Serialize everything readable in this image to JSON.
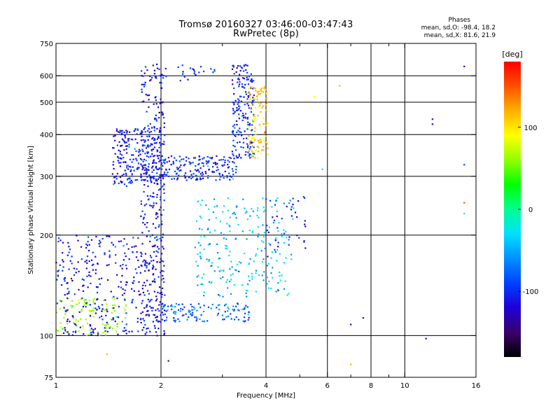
{
  "header": {
    "title_line1": "Tromsø 20160327 03:46:00-03:47:43",
    "title_line2": "RwPretec (8p)"
  },
  "phases": {
    "heading": "Phases",
    "line_o": "mean, sd,O: -98.4, 18.2",
    "line_x": "mean, sd,X:  81.6, 21.9"
  },
  "colorbar": {
    "unit_label": "[deg]",
    "tick_labels": [
      "100",
      "0",
      "-100"
    ],
    "tick_values": [
      100,
      0,
      -100
    ],
    "range": [
      -180,
      180
    ],
    "colormap": [
      "#000000",
      "#3a006b",
      "#1f00d8",
      "#0040ff",
      "#0090ff",
      "#00e0ff",
      "#00ff90",
      "#00ff00",
      "#90ff00",
      "#ffff00",
      "#ffb000",
      "#ff5000",
      "#ff0000"
    ]
  },
  "chart_data": {
    "type": "scatter",
    "title": "Tromsø 20160327 03:46:00-03:47:43",
    "subtitle": "RwPretec (8p)",
    "xlabel": "Frequency [MHz]",
    "ylabel": "Stationary phase Virtual Height [km]",
    "xscale": "log",
    "yscale": "log",
    "xlim": [
      1,
      16
    ],
    "ylim": [
      75,
      750
    ],
    "x_ticks": [
      1,
      2,
      4,
      6,
      8,
      10,
      16
    ],
    "x_tick_labels": [
      "1",
      "2",
      "4",
      "6",
      "8",
      "10",
      "16"
    ],
    "x_minor_ticks": [
      3,
      5,
      7,
      9
    ],
    "x_gridlines": [
      2,
      4,
      6,
      8,
      10
    ],
    "y_ticks": [
      75,
      100,
      200,
      300,
      400,
      500,
      600,
      750
    ],
    "y_tick_labels": [
      "75",
      "100",
      "200",
      "300",
      "400",
      "500",
      "600",
      "750"
    ],
    "y_gridlines": [
      100,
      200,
      300,
      400,
      500,
      600
    ],
    "grid": true,
    "color_encoding": "phase [deg]",
    "point_clusters": [
      {
        "x_range": [
          1.0,
          1.6
        ],
        "y_range": [
          100,
          130
        ],
        "phase": 60,
        "count": 110
      },
      {
        "x_range": [
          1.0,
          2.0
        ],
        "y_range": [
          100,
          200
        ],
        "phase": -110,
        "count": 320
      },
      {
        "x_range": [
          1.75,
          2.05
        ],
        "y_range": [
          100,
          650
        ],
        "phase": -115,
        "count": 300
      },
      {
        "x_range": [
          1.45,
          2.0
        ],
        "y_range": [
          280,
          420
        ],
        "phase": -105,
        "count": 260
      },
      {
        "x_range": [
          2.0,
          3.3
        ],
        "y_range": [
          292,
          345
        ],
        "phase": -95,
        "count": 180
      },
      {
        "x_range": [
          3.2,
          3.7
        ],
        "y_range": [
          340,
          650
        ],
        "phase": -100,
        "count": 180
      },
      {
        "x_range": [
          3.55,
          4.05
        ],
        "y_range": [
          340,
          560
        ],
        "phase": 110,
        "count": 110
      },
      {
        "x_range": [
          2.0,
          3.6
        ],
        "y_range": [
          110,
          125
        ],
        "phase": -80,
        "count": 120
      },
      {
        "x_range": [
          2.5,
          4.8
        ],
        "y_range": [
          130,
          260
        ],
        "phase": -40,
        "count": 230
      },
      {
        "x_range": [
          1.9,
          2.9
        ],
        "y_range": [
          580,
          650
        ],
        "phase": -100,
        "count": 25
      },
      {
        "x_range": [
          4.0,
          5.2
        ],
        "y_range": [
          170,
          280
        ],
        "phase": -110,
        "count": 40
      }
    ],
    "outliers": [
      {
        "x": 14.8,
        "y": 640,
        "phase": -120
      },
      {
        "x": 12.0,
        "y": 445,
        "phase": -120
      },
      {
        "x": 12.0,
        "y": 430,
        "phase": -120
      },
      {
        "x": 14.8,
        "y": 325,
        "phase": -90
      },
      {
        "x": 14.8,
        "y": 250,
        "phase": 150
      },
      {
        "x": 14.8,
        "y": 232,
        "phase": -20
      },
      {
        "x": 7.0,
        "y": 108,
        "phase": -110
      },
      {
        "x": 7.6,
        "y": 113,
        "phase": -120
      },
      {
        "x": 11.5,
        "y": 98,
        "phase": -120
      },
      {
        "x": 7.0,
        "y": 82,
        "phase": 120
      },
      {
        "x": 1.4,
        "y": 88,
        "phase": 110
      },
      {
        "x": 2.1,
        "y": 84,
        "phase": -110
      },
      {
        "x": 5.8,
        "y": 315,
        "phase": -30
      },
      {
        "x": 6.5,
        "y": 560,
        "phase": 120
      },
      {
        "x": 5.5,
        "y": 520,
        "phase": 100
      }
    ]
  }
}
